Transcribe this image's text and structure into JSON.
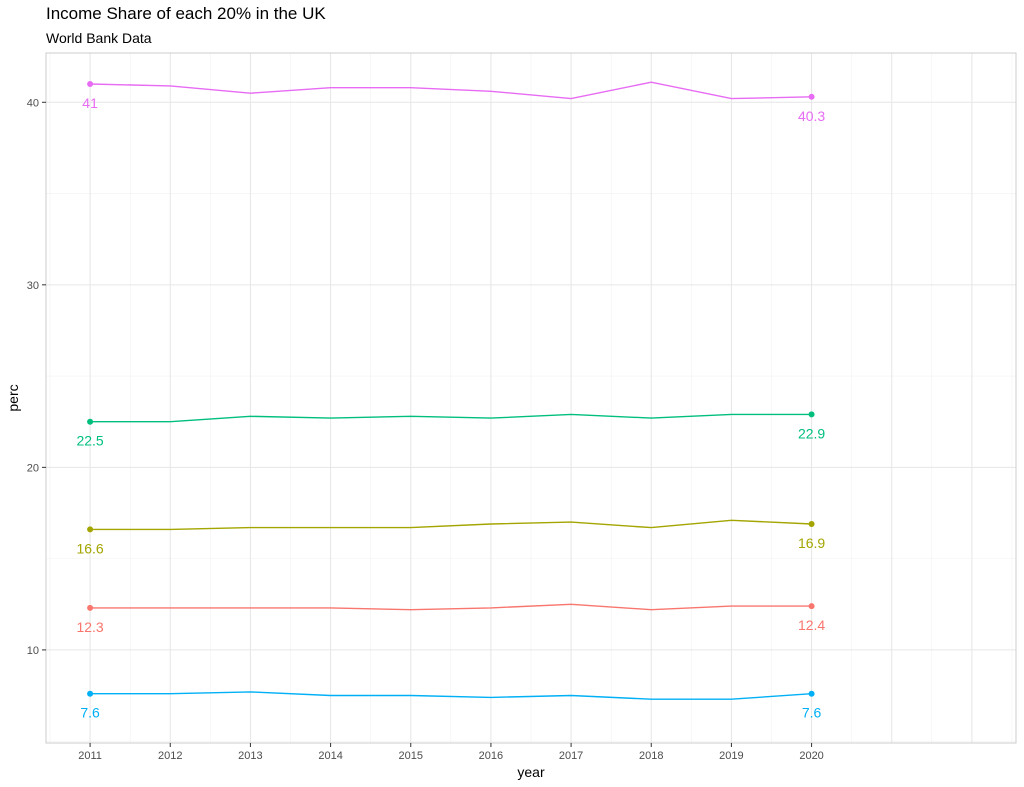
{
  "chart_data": {
    "type": "line",
    "title": "Income Share of each 20% in the UK",
    "subtitle": "World Bank Data",
    "xlabel": "year",
    "ylabel": "perc",
    "x": [
      2011,
      2012,
      2013,
      2014,
      2015,
      2016,
      2017,
      2018,
      2019,
      2020
    ],
    "xlim": [
      2010.45,
      2022.55
    ],
    "ylim": [
      4.9,
      42.7
    ],
    "xticks": [
      2011,
      2012,
      2013,
      2014,
      2015,
      2016,
      2017,
      2018,
      2019,
      2020
    ],
    "yticks": [
      10,
      20,
      30,
      40
    ],
    "grid": true,
    "legend": "none",
    "series": [
      {
        "color": "#F8766D",
        "values": [
          12.3,
          12.3,
          12.3,
          12.3,
          12.2,
          12.3,
          12.5,
          12.2,
          12.4,
          12.4
        ],
        "start_label": "12.3",
        "end_label": "12.4"
      },
      {
        "color": "#A3A500",
        "values": [
          16.6,
          16.6,
          16.7,
          16.7,
          16.7,
          16.9,
          17.0,
          16.7,
          17.1,
          16.9
        ],
        "start_label": "16.6",
        "end_label": "16.9"
      },
      {
        "color": "#00BF7D",
        "values": [
          22.5,
          22.5,
          22.8,
          22.7,
          22.8,
          22.7,
          22.9,
          22.7,
          22.9,
          22.9
        ],
        "start_label": "22.5",
        "end_label": "22.9"
      },
      {
        "color": "#00B0F6",
        "values": [
          7.6,
          7.6,
          7.7,
          7.5,
          7.5,
          7.4,
          7.5,
          7.3,
          7.3,
          7.6
        ],
        "start_label": "7.6",
        "end_label": "7.6"
      },
      {
        "color": "#E76BF3",
        "values": [
          41.0,
          40.9,
          40.5,
          40.8,
          40.8,
          40.6,
          40.2,
          41.1,
          40.2,
          40.3
        ],
        "start_label": "41",
        "end_label": "40.3"
      }
    ]
  }
}
